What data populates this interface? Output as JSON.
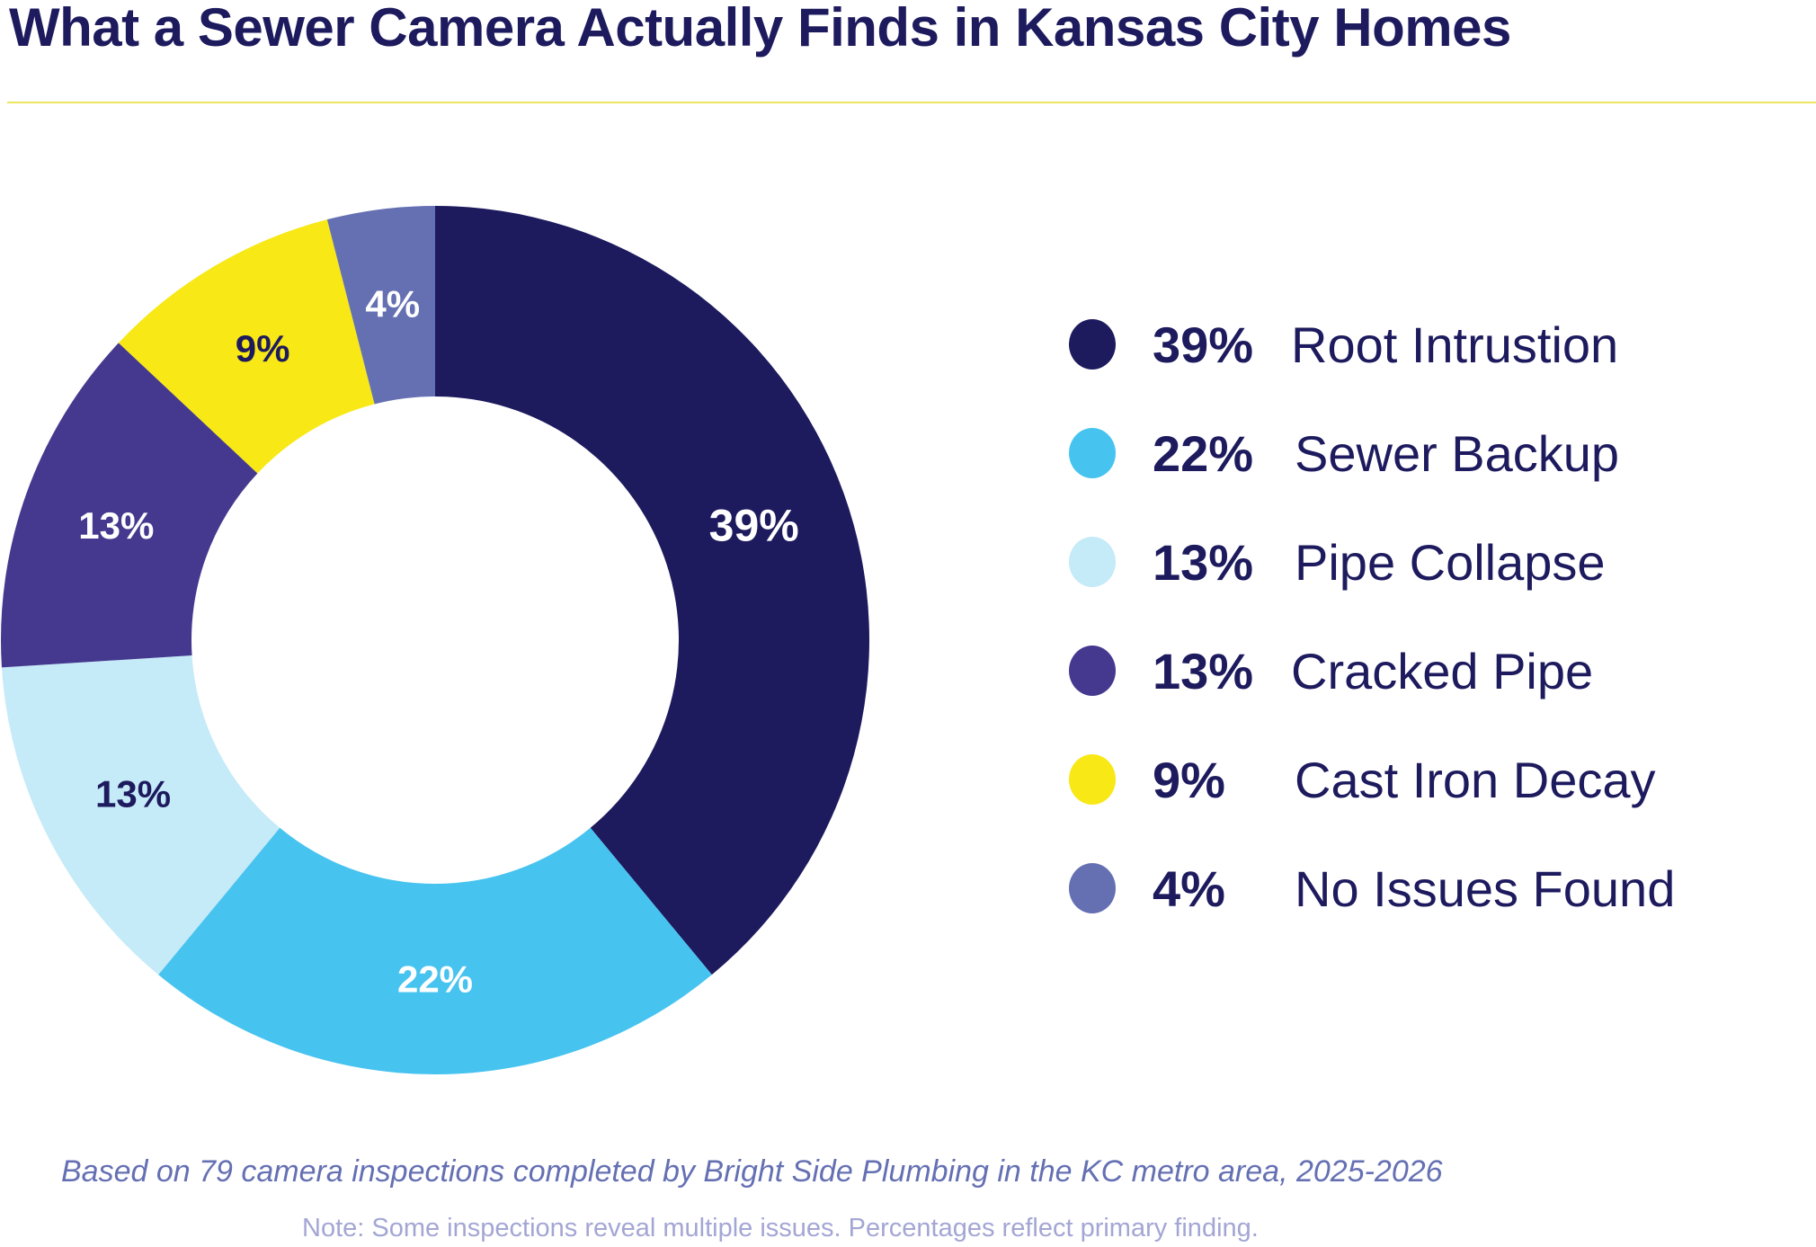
{
  "title": "What a Sewer Camera Actually Finds in Kansas City Homes",
  "footer": {
    "source": "Based on 79 camera inspections completed by Bright Side Plumbing in the KC metro area, 2025-2026",
    "note": "Note: Some inspections reveal multiple issues. Percentages reflect primary finding."
  },
  "chart_data": {
    "type": "pie",
    "variant": "donut",
    "start": "top, clockwise",
    "legend_placement": "right",
    "categories": [
      "Root Intrustion",
      "Sewer Backup",
      "Pipe Collapse",
      "Cracked Pipe",
      "Cast Iron Decay",
      "No Issues Found"
    ],
    "values": [
      39,
      22,
      13,
      13,
      9,
      4
    ],
    "labels": [
      "39%",
      "22%",
      "13%",
      "13%",
      "9%",
      "4%"
    ],
    "colors": [
      "#1d1a5e",
      "#47c3f0",
      "#c5eaf8",
      "#45398f",
      "#f8e815",
      "#6570b3"
    ],
    "label_colors": [
      "#ffffff",
      "#ffffff",
      "#1d1a5e",
      "#ffffff",
      "#1d1a5e",
      "#ffffff"
    ]
  }
}
